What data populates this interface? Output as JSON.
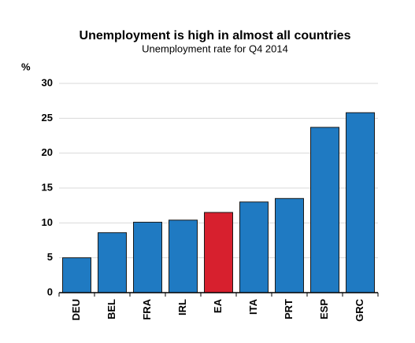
{
  "chart_data": {
    "type": "bar",
    "title": "Unemployment is high in almost all countries",
    "subtitle": "Unemployment rate for Q4 2014",
    "y_label": "%",
    "categories": [
      "DEU",
      "BEL",
      "FRA",
      "IRL",
      "EA",
      "ITA",
      "PRT",
      "ESP",
      "GRC"
    ],
    "values": [
      5.0,
      8.6,
      10.1,
      10.4,
      11.5,
      13.0,
      13.5,
      23.7,
      25.8
    ],
    "colors": [
      "#1f7ac2",
      "#1f7ac2",
      "#1f7ac2",
      "#1f7ac2",
      "#d7202e",
      "#1f7ac2",
      "#1f7ac2",
      "#1f7ac2",
      "#1f7ac2"
    ],
    "ylim": [
      0,
      30
    ],
    "yticks": [
      0,
      5,
      10,
      15,
      20,
      25,
      30
    ],
    "grid": true
  }
}
